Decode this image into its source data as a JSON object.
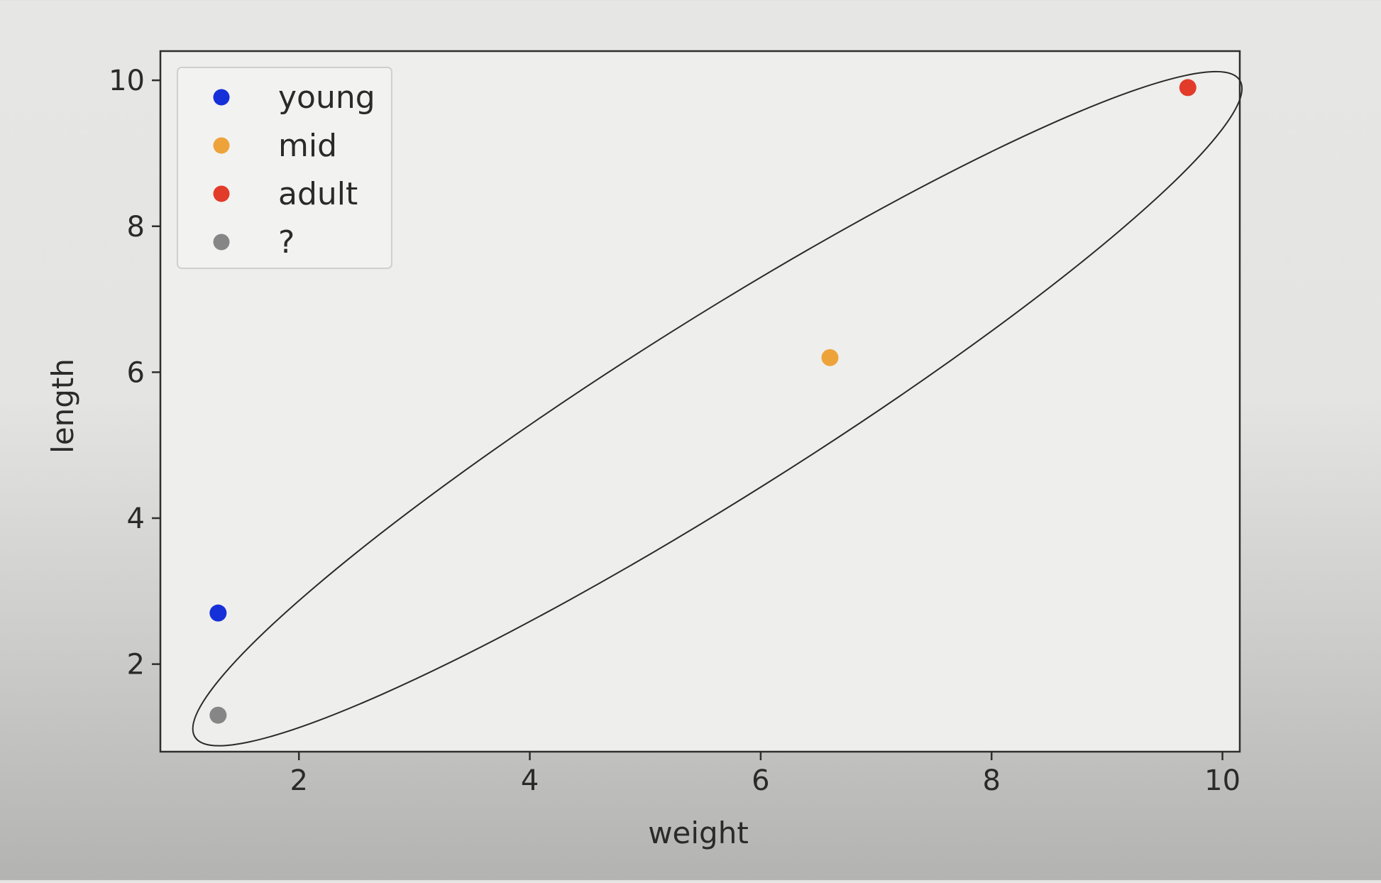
{
  "chart_data": {
    "type": "scatter",
    "title": "",
    "xlabel": "weight",
    "ylabel": "length",
    "xlim": [
      0.8,
      10.15
    ],
    "ylim": [
      0.8,
      10.4
    ],
    "x_ticks": [
      2,
      4,
      6,
      8,
      10
    ],
    "y_ticks": [
      2,
      4,
      6,
      8,
      10
    ],
    "x_tick_labels": [
      "2",
      "4",
      "6",
      "8",
      "10"
    ],
    "y_tick_labels": [
      "2",
      "4",
      "6",
      "8",
      "10"
    ],
    "grid": false,
    "legend_placement": "upper-left",
    "series": [
      {
        "name": "young",
        "color": "#1530d8",
        "points": [
          {
            "x": 1.3,
            "y": 2.7
          }
        ]
      },
      {
        "name": "mid",
        "color": "#eea33a",
        "points": [
          {
            "x": 6.6,
            "y": 6.2
          }
        ]
      },
      {
        "name": "adult",
        "color": "#e23b2a",
        "points": [
          {
            "x": 9.7,
            "y": 9.9
          }
        ]
      },
      {
        "name": "?",
        "color": "#868686",
        "points": [
          {
            "x": 1.3,
            "y": 1.3
          }
        ]
      }
    ],
    "annotations": [
      {
        "type": "ellipse",
        "color": "#2a2a2a",
        "from": {
          "x": 1.1,
          "y": 1.0
        },
        "to": {
          "x": 10.15,
          "y": 10.0
        }
      }
    ]
  }
}
